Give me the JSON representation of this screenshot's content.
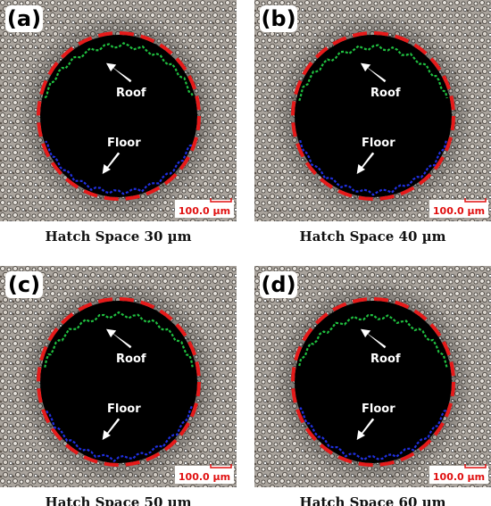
{
  "panels": [
    {
      "label": "(a)",
      "roof": "Roof",
      "floor": "Floor",
      "scale": "100.0 µm",
      "caption": "Hatch Space 30 µm"
    },
    {
      "label": "(b)",
      "roof": "Roof",
      "floor": "Floor",
      "scale": "100.0 µm",
      "caption": "Hatch Space 40 µm"
    },
    {
      "label": "(c)",
      "roof": "Roof",
      "floor": "Floor",
      "scale": "100.0 µm",
      "caption": "Hatch Space 50 µm"
    },
    {
      "label": "(d)",
      "roof": "Roof",
      "floor": "Floor",
      "scale": "100.0 µm",
      "caption": "Hatch Space 60 µm"
    }
  ]
}
